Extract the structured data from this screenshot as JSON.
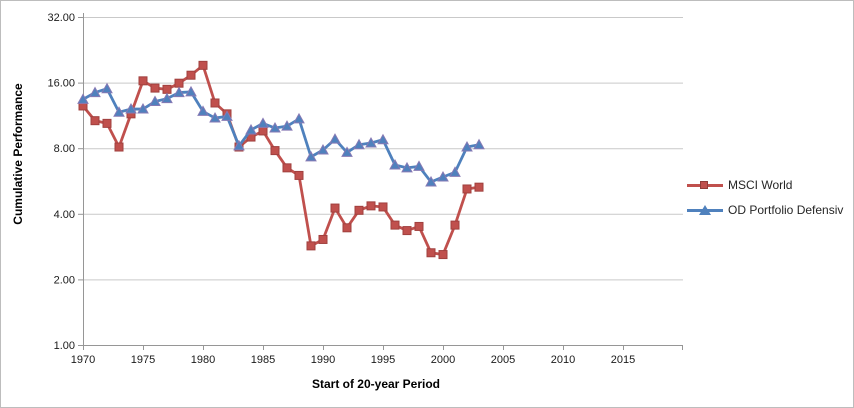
{
  "chart": {
    "y_axis_title": "Cumulative Performance",
    "x_axis_title": "Start of 20-year Period",
    "legend": [
      {
        "label": "MSCI World",
        "color": "#C0504D",
        "marker": "square"
      },
      {
        "label": "OD Portfolio Defensiv",
        "color": "#4F81BD",
        "marker": "triangle"
      }
    ],
    "colors": {
      "gridline": "#c9c9c9",
      "axis_line": "#969696",
      "tick_text": "#1a1a1a",
      "red_series": "#C0504D",
      "red_marker_border": "#a0403e",
      "blue_series": "#4F81BD",
      "blue_marker_border": "#8679b4"
    }
  },
  "chart_data": {
    "type": "line",
    "title": "",
    "xlabel": "Start of 20-year Period",
    "ylabel": "Cumulative Performance",
    "y_scale": "log2",
    "ylim": [
      1,
      32
    ],
    "xlim": [
      1970,
      2020
    ],
    "grid": "horizontal",
    "legend_position": "right",
    "y_ticks": [
      {
        "label": "32.00",
        "value": 32
      },
      {
        "label": "16.00",
        "value": 16
      },
      {
        "label": "8.00",
        "value": 8
      },
      {
        "label": "4.00",
        "value": 4
      },
      {
        "label": "2.00",
        "value": 2
      },
      {
        "label": "1.00",
        "value": 1
      }
    ],
    "x_ticks": [
      1970,
      1975,
      1980,
      1985,
      1990,
      1995,
      2000,
      2005,
      2010,
      2015
    ],
    "x": [
      1970,
      1971,
      1972,
      1973,
      1974,
      1975,
      1976,
      1977,
      1978,
      1979,
      1980,
      1981,
      1982,
      1983,
      1984,
      1985,
      1986,
      1987,
      1988,
      1989,
      1990,
      1991,
      1992,
      1993,
      1994,
      1995,
      1996,
      1997,
      1998,
      1999,
      2000,
      2001,
      2002,
      2003
    ],
    "series": [
      {
        "name": "MSCI World",
        "marker": "square",
        "values": [
          12.5,
          10.7,
          10.4,
          8.1,
          11.5,
          16.3,
          15.1,
          14.9,
          15.9,
          17.3,
          19.2,
          12.9,
          11.5,
          8.1,
          9.0,
          9.6,
          7.8,
          6.5,
          6.0,
          2.85,
          3.05,
          4.25,
          3.45,
          4.15,
          4.35,
          4.3,
          3.55,
          3.35,
          3.5,
          2.65,
          2.6,
          3.55,
          5.2,
          5.3
        ]
      },
      {
        "name": "OD Portfolio Defensiv",
        "marker": "triangle",
        "values": [
          13.4,
          14.4,
          15.0,
          11.7,
          12.1,
          12.1,
          13.1,
          13.5,
          14.4,
          14.5,
          11.8,
          11.0,
          11.2,
          8.2,
          9.7,
          10.4,
          9.9,
          10.1,
          10.9,
          7.3,
          7.85,
          8.8,
          7.65,
          8.3,
          8.45,
          8.75,
          6.7,
          6.5,
          6.6,
          5.6,
          5.9,
          6.2,
          8.1,
          8.3
        ]
      }
    ]
  }
}
